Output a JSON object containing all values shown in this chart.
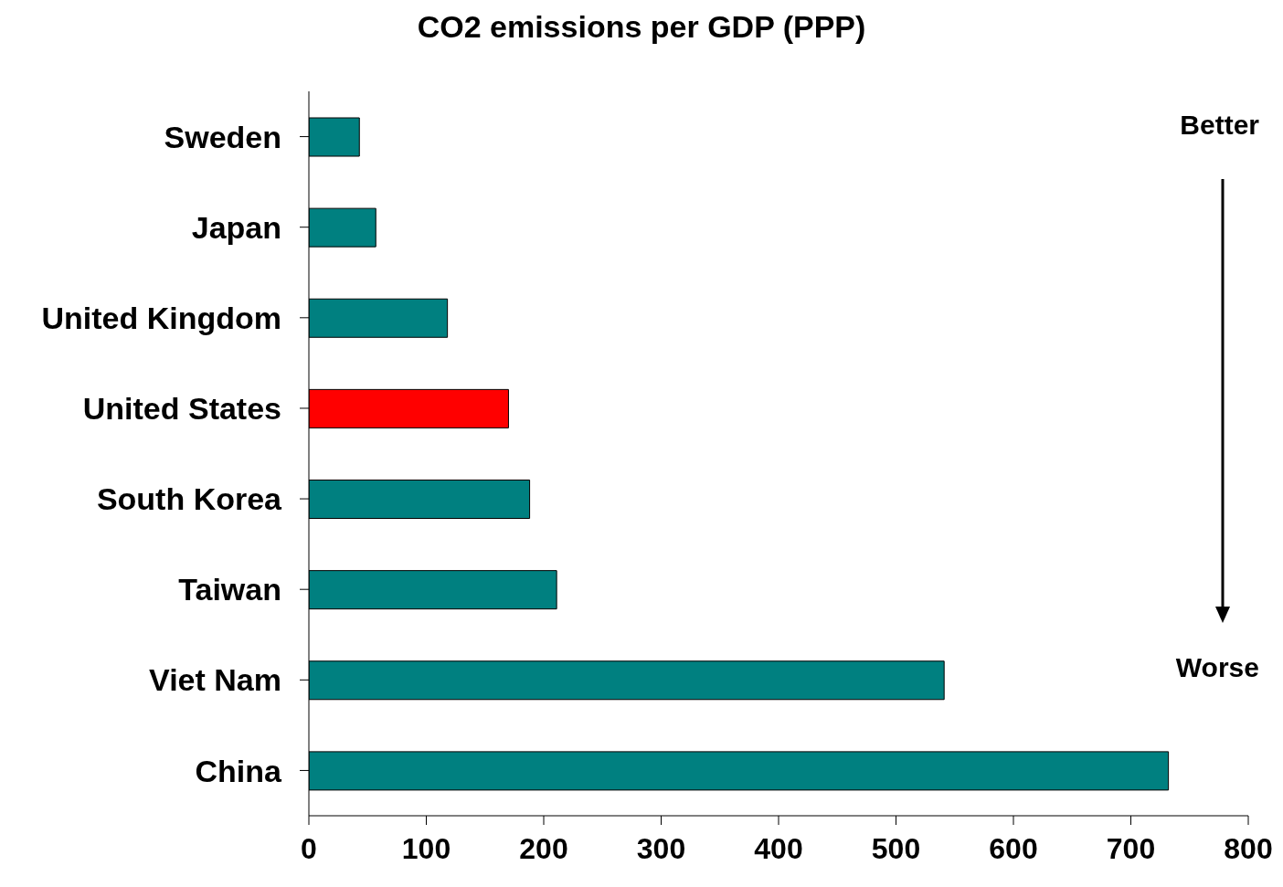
{
  "chart_data": {
    "type": "bar",
    "orientation": "horizontal",
    "title": "CO2 emissions per GDP (PPP)",
    "categories": [
      "Sweden",
      "Japan",
      "United Kingdom",
      "United States",
      "South Korea",
      "Taiwan",
      "Viet Nam",
      "China"
    ],
    "values": [
      43,
      57,
      118,
      170,
      188,
      211,
      541,
      732
    ],
    "colors": [
      "#008080",
      "#008080",
      "#008080",
      "#ff0000",
      "#008080",
      "#008080",
      "#008080",
      "#008080"
    ],
    "xlim": [
      0,
      800
    ],
    "xticks": [
      0,
      100,
      200,
      300,
      400,
      500,
      600,
      700,
      800
    ],
    "annotations": [
      "Better",
      "Worse"
    ]
  }
}
